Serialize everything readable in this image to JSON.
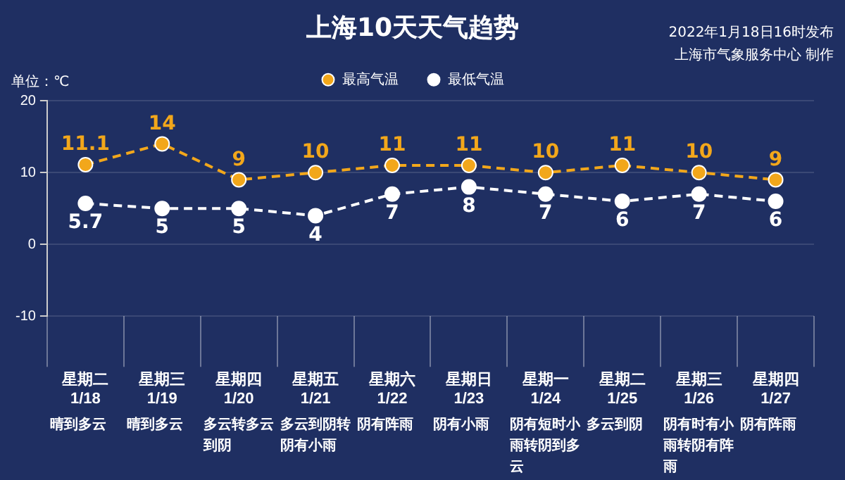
{
  "chart_data": {
    "type": "line",
    "title": "上海10天天气趋势",
    "subtitle": "2022年1月18日16时发布",
    "ylabel": "单位：℃",
    "categories": [
      "星期二\n1/18",
      "星期三\n1/19",
      "星期四\n1/20",
      "星期五\n1/21",
      "星期六\n1/22",
      "星期日\n1/23",
      "星期一\n1/24",
      "星期二\n1/25",
      "星期三\n1/26",
      "星期四\n1/27"
    ],
    "series": [
      {
        "name": "最高气温",
        "color": "#f2a71b",
        "values": [
          11.1,
          14,
          9,
          10,
          11,
          11,
          10,
          11,
          10,
          9
        ]
      },
      {
        "name": "最低气温",
        "color": "#ffffff",
        "values": [
          5.7,
          5,
          5,
          4,
          7,
          8,
          7,
          6,
          7,
          6
        ]
      }
    ],
    "ylim": [
      -10,
      20
    ],
    "yticks": [
      -10,
      0,
      10,
      20
    ],
    "grid": "y",
    "legend": "top",
    "marker": "circle",
    "line_style": "dashed",
    "data_labels": true,
    "annotations": [
      "上海市气象服务中心 制作",
      "晴到多云",
      "晴到多云",
      "多云转多云到阴",
      "多云到阴转阴有小雨",
      "阴有阵雨",
      "阴有小雨",
      "阴有短时小雨转阴到多云",
      "多云到阴",
      "阴有时有小雨转阴有阵雨",
      "阴有阵雨"
    ]
  }
}
